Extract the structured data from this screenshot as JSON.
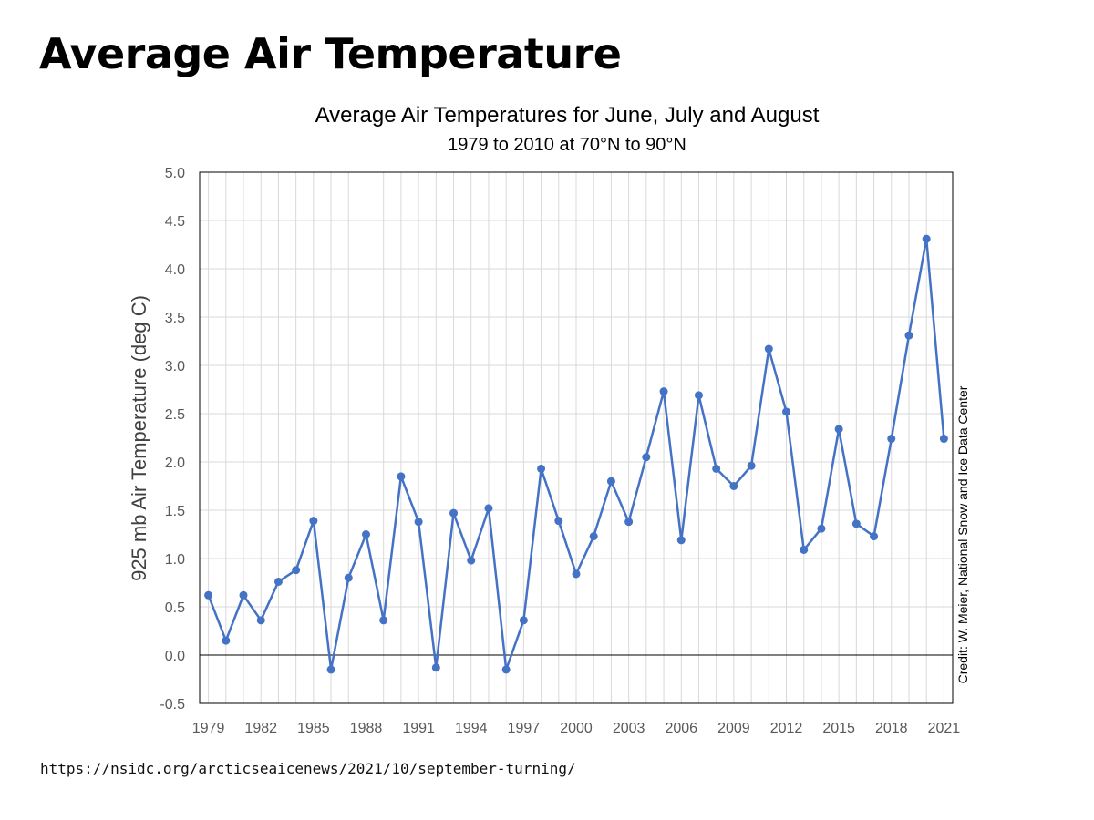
{
  "slide": {
    "title": "Average Air Temperature",
    "source_url": "https://nsidc.org/arcticseaicenews/2021/10/september-turning/"
  },
  "chart_data": {
    "type": "line",
    "title": "Average Air Temperatures for June, July and August",
    "subtitle": "1979 to 2010 at 70°N to 90°N",
    "ylabel": "925 mb Air Temperature (deg C)",
    "xlabel": "",
    "credit": "Credit: W. Meier, National Snow and Ice Data Center",
    "xlim": [
      1978.5,
      2021.5
    ],
    "ylim": [
      -0.5,
      5.0
    ],
    "y_ticks": [
      -0.5,
      0.0,
      0.5,
      1.0,
      1.5,
      2.0,
      2.5,
      3.0,
      3.5,
      4.0,
      4.5,
      5.0
    ],
    "y_tick_labels": [
      "-0.5",
      "0.0",
      "0.5",
      "1.0",
      "1.5",
      "2.0",
      "2.5",
      "3.0",
      "3.5",
      "4.0",
      "4.5",
      "5.0"
    ],
    "x_tick_labels": [
      "1979",
      "1982",
      "1985",
      "1988",
      "1991",
      "1994",
      "1997",
      "2000",
      "2003",
      "2006",
      "2009",
      "2012",
      "2015",
      "2018",
      "2021"
    ],
    "grid": true,
    "zero_line": true,
    "series_color": "#4472C4",
    "grid_color": "#d9d9d9",
    "series": [
      {
        "x": [
          1979,
          1980,
          1981,
          1982,
          1983,
          1984,
          1985,
          1986,
          1987,
          1988,
          1989,
          1990,
          1991,
          1992,
          1993,
          1994,
          1995,
          1996,
          1997,
          1998,
          1999,
          2000,
          2001,
          2002,
          2003,
          2004,
          2005,
          2006,
          2007,
          2008,
          2009,
          2010,
          2011,
          2012,
          2013,
          2014,
          2015,
          2016,
          2017,
          2018,
          2019,
          2020,
          2021
        ],
        "values": [
          0.62,
          0.15,
          0.62,
          0.36,
          0.76,
          0.88,
          1.39,
          -0.15,
          0.8,
          1.25,
          0.36,
          1.85,
          1.38,
          -0.13,
          1.47,
          0.98,
          1.52,
          -0.15,
          0.36,
          1.93,
          1.39,
          0.84,
          1.23,
          1.8,
          1.38,
          2.05,
          2.73,
          1.19,
          2.69,
          1.93,
          1.75,
          1.96,
          3.17,
          2.52,
          1.09,
          1.31,
          2.34,
          1.36,
          1.23,
          2.24,
          3.31,
          4.31,
          2.24
        ]
      }
    ]
  }
}
